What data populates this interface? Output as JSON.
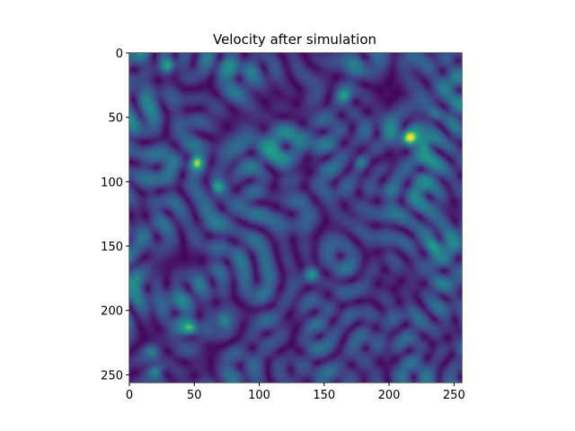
{
  "chart_data": {
    "type": "heatmap",
    "title": "Velocity after simulation",
    "xlabel": "",
    "ylabel": "",
    "xlim": [
      0,
      256
    ],
    "ylim": [
      256,
      0
    ],
    "colormap": "viridis",
    "grid": false,
    "x_ticks": [
      0,
      50,
      100,
      150,
      200,
      250
    ],
    "y_ticks": [
      0,
      50,
      100,
      150,
      200,
      250
    ],
    "hotspots": [
      {
        "x": 30,
        "y": 10,
        "v": 1.0
      },
      {
        "x": 52,
        "y": 85,
        "v": 1.0
      },
      {
        "x": 68,
        "y": 104,
        "v": 0.95
      },
      {
        "x": 215,
        "y": 66,
        "v": 1.0
      },
      {
        "x": 228,
        "y": 70,
        "v": 0.8
      },
      {
        "x": 178,
        "y": 85,
        "v": 0.7
      },
      {
        "x": 165,
        "y": 33,
        "v": 0.65
      },
      {
        "x": 140,
        "y": 172,
        "v": 0.85
      },
      {
        "x": 72,
        "y": 208,
        "v": 0.9
      },
      {
        "x": 47,
        "y": 214,
        "v": 0.8
      },
      {
        "x": 20,
        "y": 246,
        "v": 0.75
      },
      {
        "x": 235,
        "y": 150,
        "v": 0.6
      },
      {
        "x": 17,
        "y": 232,
        "v": 0.5
      },
      {
        "x": 235,
        "y": 48,
        "v": 0.5
      }
    ]
  },
  "colors": {
    "viridis_low": "#440154",
    "viridis_mid": "#21918c",
    "viridis_high": "#fde725"
  }
}
